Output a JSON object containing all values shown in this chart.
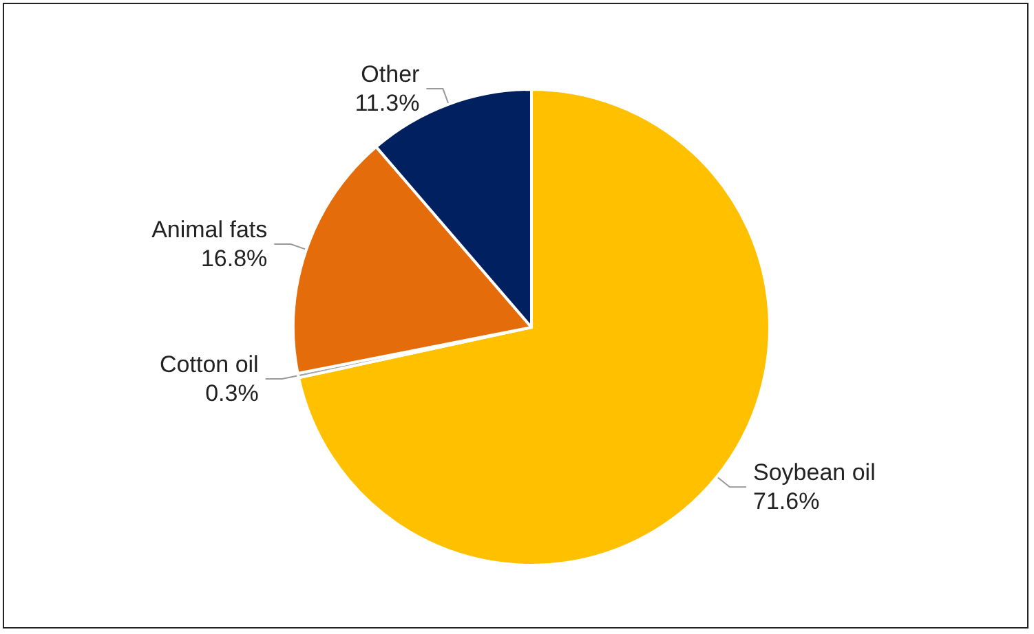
{
  "chart_data": {
    "type": "pie",
    "categories": [
      "Soybean oil",
      "Cotton oil",
      "Animal fats",
      "Other"
    ],
    "values": [
      71.6,
      0.3,
      16.8,
      11.3
    ],
    "value_labels": [
      "71.6%",
      "0.3%",
      "16.8%",
      "11.3%"
    ],
    "colors": [
      "#ffc000",
      "#a5a5a5",
      "#e46c0a",
      "#002060"
    ],
    "legend": false
  }
}
